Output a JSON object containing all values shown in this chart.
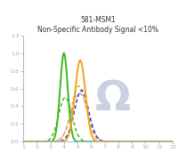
{
  "title_line1": "581-MSM1",
  "title_line2": "Non-Specific Antibody Signal <10%",
  "xlim": [
    1,
    12
  ],
  "ylim": [
    0,
    1.2
  ],
  "xticks": [
    1,
    2,
    3,
    4,
    5,
    6,
    7,
    8,
    9,
    10,
    11,
    12
  ],
  "yticks": [
    0,
    0.2,
    0.4,
    0.6,
    0.8,
    1.0,
    1.2
  ],
  "colors": {
    "green_solid": "#3ab81a",
    "orange_solid": "#f5a020",
    "orange_dashed": "#f5a020",
    "blue_dashed": "#2233cc",
    "green_dashed": "#3ab81a",
    "lavender_dashed": "#b8b0d8"
  },
  "watermark_color": "#cdd0e0",
  "tick_color": "#99aacc",
  "spine_color": "#99aacc",
  "background_color": "#ffffff",
  "title_color": "#333333",
  "curves": [
    {
      "mu": 4.0,
      "sigma": 0.28,
      "amp": 1.0,
      "color": "#3ab81a",
      "ls": "solid",
      "lw": 1.4,
      "zorder": 6
    },
    {
      "mu": 5.2,
      "sigma": 0.38,
      "amp": 0.92,
      "color": "#f5a020",
      "ls": "solid",
      "lw": 1.4,
      "zorder": 7
    },
    {
      "mu": 5.1,
      "sigma": 0.55,
      "amp": 0.63,
      "color": "#f5a020",
      "ls": "dashed",
      "lw": 1.0,
      "zorder": 4
    },
    {
      "mu": 5.3,
      "sigma": 0.52,
      "amp": 0.58,
      "color": "#2233cc",
      "ls": "dashed",
      "lw": 1.0,
      "zorder": 5
    },
    {
      "mu": 4.1,
      "sigma": 0.48,
      "amp": 0.5,
      "color": "#3ab81a",
      "ls": "dashed",
      "lw": 1.0,
      "zorder": 3
    },
    {
      "mu": 5.15,
      "sigma": 0.6,
      "amp": 0.55,
      "color": "#b8b0d8",
      "ls": "dashed",
      "lw": 1.1,
      "zorder": 2
    }
  ]
}
